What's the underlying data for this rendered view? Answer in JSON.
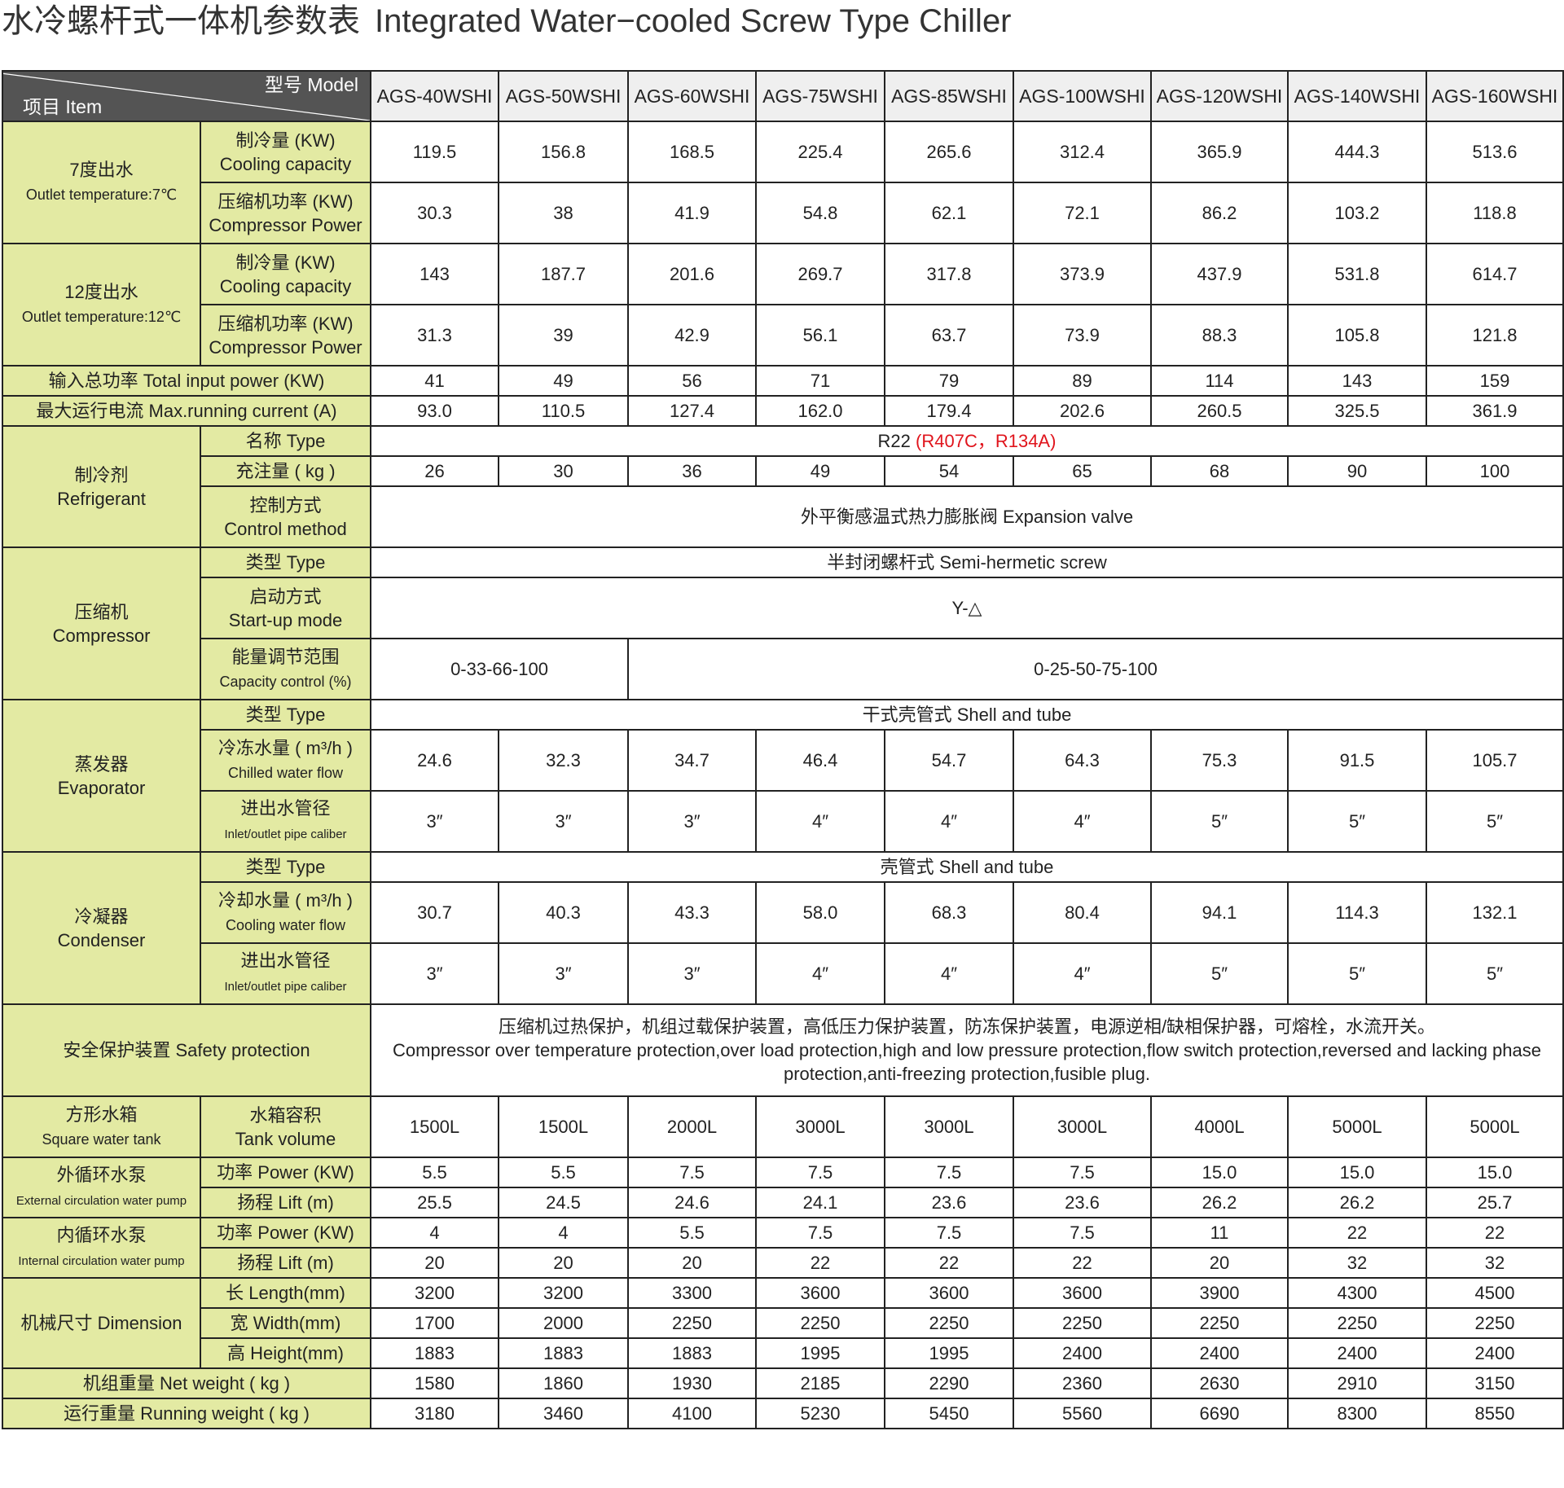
{
  "title": {
    "cn": "水冷螺杆式一体机参数表",
    "en": "Integrated Water−cooled Screw Type Chiller"
  },
  "header": {
    "model_label": "型号  Model",
    "item_label": "项目  Item"
  },
  "models": [
    "AGS-40WSHI",
    "AGS-50WSHI",
    "AGS-60WSHI",
    "AGS-75WSHI",
    "AGS-85WSHI",
    "AGS-100WSHI",
    "AGS-120WSHI",
    "AGS-140WSHI",
    "AGS-160WSHI"
  ],
  "colors": {
    "label_bg": "#e3eaa3",
    "header_bg": "#545454",
    "model_bg": "#efefef",
    "alt_refrigerant": "#e0141c"
  },
  "sections": [
    {
      "group_cn": "7度出水",
      "group_en": "Outlet temperature:7℃",
      "items": [
        {
          "cn": "制冷量 (KW)",
          "en": "Cooling capacity",
          "values": [
            "119.5",
            "156.8",
            "168.5",
            "225.4",
            "265.6",
            "312.4",
            "365.9",
            "444.3",
            "513.6"
          ]
        },
        {
          "cn": "压缩机功率 (KW)",
          "en": "Compressor Power",
          "values": [
            "30.3",
            "38",
            "41.9",
            "54.8",
            "62.1",
            "72.1",
            "86.2",
            "103.2",
            "118.8"
          ]
        }
      ]
    },
    {
      "group_cn": "12度出水",
      "group_en": "Outlet temperature:12℃",
      "items": [
        {
          "cn": "制冷量 (KW)",
          "en": "Cooling capacity",
          "values": [
            "143",
            "187.7",
            "201.6",
            "269.7",
            "317.8",
            "373.9",
            "437.9",
            "531.8",
            "614.7"
          ]
        },
        {
          "cn": "压缩机功率 (KW)",
          "en": "Compressor Power",
          "values": [
            "31.3",
            "39",
            "42.9",
            "56.1",
            "63.7",
            "73.9",
            "88.3",
            "105.8",
            "121.8"
          ]
        }
      ]
    },
    {
      "label": "输入总功率  Total input power (KW)",
      "values": [
        "41",
        "49",
        "56",
        "71",
        "79",
        "89",
        "114",
        "143",
        "159"
      ]
    },
    {
      "label": "最大运行电流  Max.running current (A)",
      "values": [
        "93.0",
        "110.5",
        "127.4",
        "162.0",
        "179.4",
        "202.6",
        "260.5",
        "325.5",
        "361.9"
      ]
    },
    {
      "group_cn": "制冷剂",
      "group_en": "Refrigerant",
      "items": [
        {
          "cn": "名称  Type",
          "merged": "R22 ",
          "merged_alt": "(R407C，R134A)"
        },
        {
          "cn": "充注量 ( kg )",
          "values": [
            "26",
            "30",
            "36",
            "49",
            "54",
            "65",
            "68",
            "90",
            "100"
          ]
        },
        {
          "cn": "控制方式",
          "en": "Control method",
          "merged": "外平衡感温式热力膨胀阀  Expansion valve"
        }
      ]
    },
    {
      "group_cn": "压缩机",
      "group_en": "Compressor",
      "items": [
        {
          "cn": "类型  Type",
          "merged": "半封闭螺杆式  Semi-hermetic screw"
        },
        {
          "cn": "启动方式",
          "en": "Start-up mode",
          "merged": "Y-△"
        },
        {
          "cn": "能量调节范围",
          "en": "Capacity control (%)",
          "value_groups": [
            {
              "text": "0-33-66-100",
              "cols": 2
            },
            {
              "text": "0-25-50-75-100",
              "cols": 7
            }
          ]
        }
      ]
    },
    {
      "group_cn": "蒸发器",
      "group_en": "Evaporator",
      "items": [
        {
          "cn": "类型  Type",
          "merged": "干式壳管式    Shell and tube"
        },
        {
          "cn": "冷冻水量 ( m³/h )",
          "en": "Chilled water flow",
          "values": [
            "24.6",
            "32.3",
            "34.7",
            "46.4",
            "54.7",
            "64.3",
            "75.3",
            "91.5",
            "105.7"
          ]
        },
        {
          "cn": "进出水管径",
          "en": "Inlet/outlet pipe caliber",
          "values": [
            "3″",
            "3″",
            "3″",
            "4″",
            "4″",
            "4″",
            "5″",
            "5″",
            "5″"
          ]
        }
      ]
    },
    {
      "group_cn": "冷凝器",
      "group_en": "Condenser",
      "items": [
        {
          "cn": "类型  Type",
          "merged": "壳管式  Shell and tube"
        },
        {
          "cn": "冷却水量 ( m³/h )",
          "en": "Cooling water flow",
          "values": [
            "30.7",
            "40.3",
            "43.3",
            "58.0",
            "68.3",
            "80.4",
            "94.1",
            "114.3",
            "132.1"
          ]
        },
        {
          "cn": "进出水管径",
          "en": "Inlet/outlet pipe caliber",
          "values": [
            "3″",
            "3″",
            "3″",
            "4″",
            "4″",
            "4″",
            "5″",
            "5″",
            "5″"
          ]
        }
      ]
    },
    {
      "label": "安全保护装置  Safety protection",
      "merged": "压缩机过热保护，机组过载保护装置，高低压力保护装置，防冻保护装置，电源逆相/缺相保护器，可熔栓，水流开关。",
      "merged_en": "Compressor over temperature protection,over load protection,high and low pressure protection,flow switch protection,reversed and lacking phase protection,anti-freezing protection,fusible plug."
    },
    {
      "group_cn": "方形水箱",
      "group_en": "Square water tank",
      "items": [
        {
          "cn": "水箱容积",
          "en": "Tank volume",
          "values": [
            "1500L",
            "1500L",
            "2000L",
            "3000L",
            "3000L",
            "3000L",
            "4000L",
            "5000L",
            "5000L"
          ]
        }
      ]
    },
    {
      "group_cn": "外循环水泵",
      "group_en": "External circulation water pump",
      "items": [
        {
          "cn": "功率 Power (KW)",
          "values": [
            "5.5",
            "5.5",
            "7.5",
            "7.5",
            "7.5",
            "7.5",
            "15.0",
            "15.0",
            "15.0"
          ]
        },
        {
          "cn": "扬程 Lift (m)",
          "values": [
            "25.5",
            "24.5",
            "24.6",
            "24.1",
            "23.6",
            "23.6",
            "26.2",
            "26.2",
            "25.7"
          ]
        }
      ]
    },
    {
      "group_cn": "内循环水泵",
      "group_en": "Internal circulation water pump",
      "items": [
        {
          "cn": "功率 Power (KW)",
          "values": [
            "4",
            "4",
            "5.5",
            "7.5",
            "7.5",
            "7.5",
            "11",
            "22",
            "22"
          ]
        },
        {
          "cn": "扬程 Lift (m)",
          "values": [
            "20",
            "20",
            "20",
            "22",
            "22",
            "22",
            "20",
            "32",
            "32"
          ]
        }
      ]
    },
    {
      "group_cn": "机械尺寸  Dimension",
      "items": [
        {
          "cn": "长 Length(mm)",
          "values": [
            "3200",
            "3200",
            "3300",
            "3600",
            "3600",
            "3600",
            "3900",
            "4300",
            "4500"
          ]
        },
        {
          "cn": "宽 Width(mm)",
          "values": [
            "1700",
            "2000",
            "2250",
            "2250",
            "2250",
            "2250",
            "2250",
            "2250",
            "2250"
          ]
        },
        {
          "cn": "高 Height(mm)",
          "values": [
            "1883",
            "1883",
            "1883",
            "1995",
            "1995",
            "2400",
            "2400",
            "2400",
            "2400"
          ]
        }
      ]
    },
    {
      "label": "机组重量  Net weight ( kg )",
      "values": [
        "1580",
        "1860",
        "1930",
        "2185",
        "2290",
        "2360",
        "2630",
        "2910",
        "3150"
      ]
    },
    {
      "label": "运行重量  Running weight ( kg )",
      "values": [
        "3180",
        "3460",
        "4100",
        "5230",
        "5450",
        "5560",
        "6690",
        "8300",
        "8550"
      ]
    }
  ]
}
